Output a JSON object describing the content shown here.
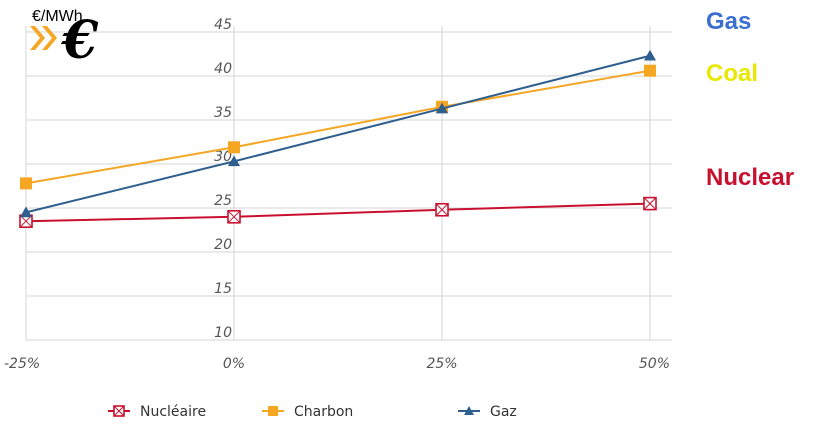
{
  "chart_data": {
    "type": "line",
    "x": [
      "-25%",
      "0%",
      "25%",
      "50%"
    ],
    "y_ticks": [
      10,
      15,
      20,
      25,
      30,
      35,
      40,
      45
    ],
    "ylim": [
      10,
      45
    ],
    "ylabel": "€/MWh",
    "grid": true,
    "legend_placement": "bottom",
    "series": [
      {
        "name": "Nucléaire",
        "values": [
          23.5,
          24,
          24.8,
          25.5
        ],
        "color": "#c8102e",
        "marker": "square-open"
      },
      {
        "name": "Charbon",
        "values": [
          27.8,
          31.9,
          36.5,
          40.6
        ],
        "color": "#f5a623",
        "marker": "square"
      },
      {
        "name": "Gaz",
        "values": [
          24.5,
          30.3,
          36.3,
          42.3
        ],
        "color": "#2f5f8f",
        "marker": "triangle"
      }
    ]
  },
  "side_labels": [
    {
      "text": "Gas",
      "color": "#3a6fcf"
    },
    {
      "text": "Coal",
      "color": "#e8e800"
    },
    {
      "text": "Nuclear",
      "color": "#c8102e"
    }
  ],
  "logo": {
    "text": "€",
    "icon": "euro-logo",
    "color": "#f5a623"
  }
}
